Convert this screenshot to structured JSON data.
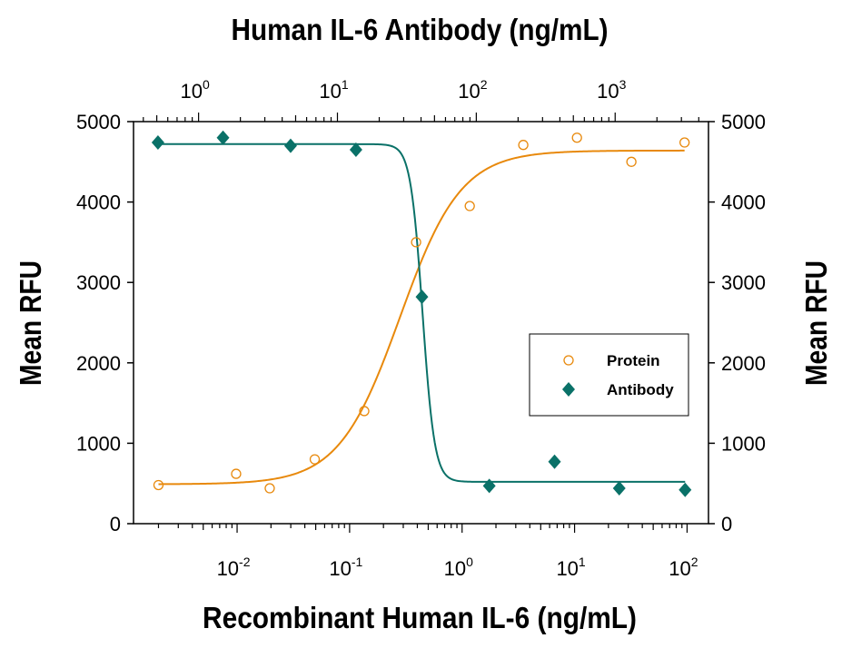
{
  "chart_data": {
    "type": "scatter",
    "top_xlabel": "Human IL-6 Antibody (ng/mL)",
    "bottom_xlabel": "Recombinant Human IL-6 (ng/mL)",
    "left_ylabel": "Mean RFU",
    "right_ylabel": "Mean RFU",
    "x_scale": "log",
    "bottom_xlim": [
      0.0012,
      155
    ],
    "top_xlim": [
      0.34,
      4700
    ],
    "ylim": [
      0,
      5000
    ],
    "y_ticks": [
      "0",
      "1000",
      "2000",
      "3000",
      "4000",
      "5000"
    ],
    "bottom_x_ticks": [
      {
        "base": "10",
        "exp": "-2",
        "value": 0.01
      },
      {
        "base": "10",
        "exp": "-1",
        "value": 0.1
      },
      {
        "base": "10",
        "exp": "0",
        "value": 1
      },
      {
        "base": "10",
        "exp": "1",
        "value": 10
      },
      {
        "base": "10",
        "exp": "2",
        "value": 100
      }
    ],
    "top_x_ticks": [
      {
        "base": "10",
        "exp": "0",
        "value": 1
      },
      {
        "base": "10",
        "exp": "1",
        "value": 10
      },
      {
        "base": "10",
        "exp": "2",
        "value": 100
      },
      {
        "base": "10",
        "exp": "3",
        "value": 1000
      }
    ],
    "grid": false,
    "legend_position": "center-right",
    "series": [
      {
        "name": "Protein",
        "axis": "bottom",
        "marker": "open-circle",
        "color": "#E8890C",
        "x": [
          0.002,
          0.0098,
          0.0195,
          0.049,
          0.135,
          0.39,
          1.17,
          3.5,
          10.5,
          32,
          95
        ],
        "y": [
          480,
          620,
          440,
          800,
          1400,
          3500,
          3950,
          4710,
          4800,
          4500,
          4740
        ],
        "fit": {
          "bottom": 490,
          "top": 4640,
          "ec50": 0.28,
          "hill": 1.6
        }
      },
      {
        "name": "Antibody",
        "axis": "top",
        "marker": "filled-diamond",
        "color": "#0A7168",
        "x": [
          0.51,
          1.5,
          4.6,
          13.6,
          40.6,
          124,
          366,
          1070,
          3190
        ],
        "y": [
          4740,
          4800,
          4700,
          4650,
          2820,
          470,
          770,
          440,
          420
        ],
        "fit": {
          "bottom": 520,
          "top": 4720,
          "ec50": 41,
          "hill": -10
        }
      }
    ]
  }
}
